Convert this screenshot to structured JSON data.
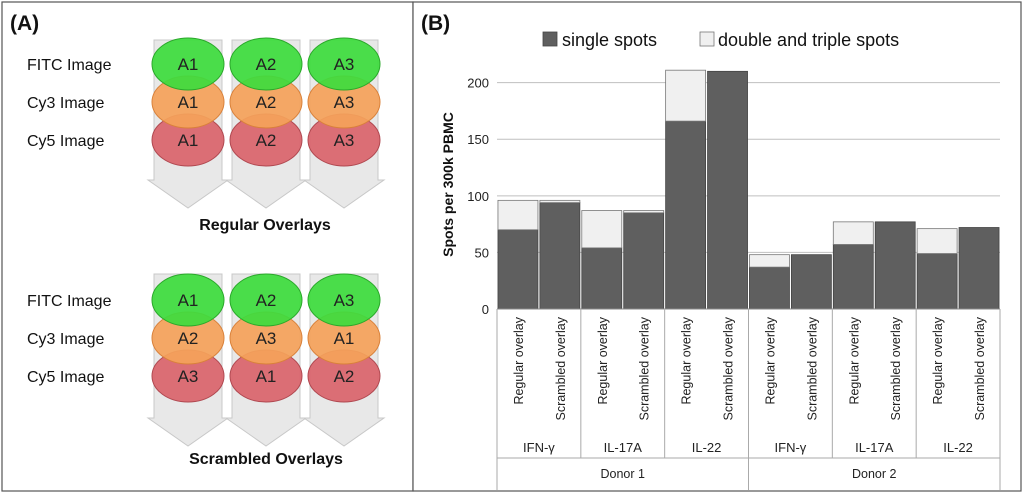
{
  "panel_a": {
    "label": "(A)",
    "row_labels": [
      "FITC Image",
      "Cy3 Image",
      "Cy5 Image"
    ],
    "regular": {
      "title": "Regular Overlays",
      "columns": [
        [
          "A1",
          "A1",
          "A1"
        ],
        [
          "A2",
          "A2",
          "A2"
        ],
        [
          "A3",
          "A3",
          "A3"
        ]
      ]
    },
    "scrambled": {
      "title": "Scrambled Overlays",
      "columns": [
        [
          "A1",
          "A2",
          "A3"
        ],
        [
          "A2",
          "A3",
          "A1"
        ],
        [
          "A3",
          "A1",
          "A2"
        ]
      ]
    },
    "colors": {
      "fitc": "#3ddc3d",
      "cy3": "#f4a15a",
      "cy5": "#d9646c",
      "arrow": "#e8e8e8"
    }
  },
  "panel_b": {
    "label": "(B)"
  },
  "chart_data": {
    "type": "bar",
    "stacked": true,
    "title": "",
    "ylabel": "Spots per 300k PBMC",
    "ylim": [
      0,
      220
    ],
    "yticks": [
      0,
      50,
      100,
      150,
      200
    ],
    "legend": [
      "single spots",
      "double and triple spots"
    ],
    "legend_position": "top",
    "colors": {
      "single": "#5f5f5f",
      "multi": "#f0f0f0"
    },
    "categories": [
      "Regular overlay",
      "Scrambled overlay",
      "Regular overlay",
      "Scrambled overlay",
      "Regular overlay",
      "Scrambled overlay",
      "Regular overlay",
      "Scrambled overlay",
      "Regular overlay",
      "Scrambled overlay",
      "Regular overlay",
      "Scrambled overlay"
    ],
    "series": [
      {
        "name": "single spots",
        "values": [
          70,
          94,
          54,
          85,
          166,
          210,
          37,
          48,
          57,
          77,
          49,
          72
        ]
      },
      {
        "name": "double and triple spots",
        "values": [
          26,
          2,
          33,
          2,
          45,
          0,
          11,
          0,
          20,
          0,
          22,
          0
        ]
      }
    ],
    "groups": [
      {
        "label": "IFN-γ",
        "span": 2
      },
      {
        "label": "IL-17A",
        "span": 2
      },
      {
        "label": "IL-22",
        "span": 2
      },
      {
        "label": "IFN-γ",
        "span": 2
      },
      {
        "label": "IL-17A",
        "span": 2
      },
      {
        "label": "IL-22",
        "span": 2
      }
    ],
    "donors": [
      {
        "label": "Donor 1",
        "span": 6
      },
      {
        "label": "Donor 2",
        "span": 6
      }
    ]
  }
}
